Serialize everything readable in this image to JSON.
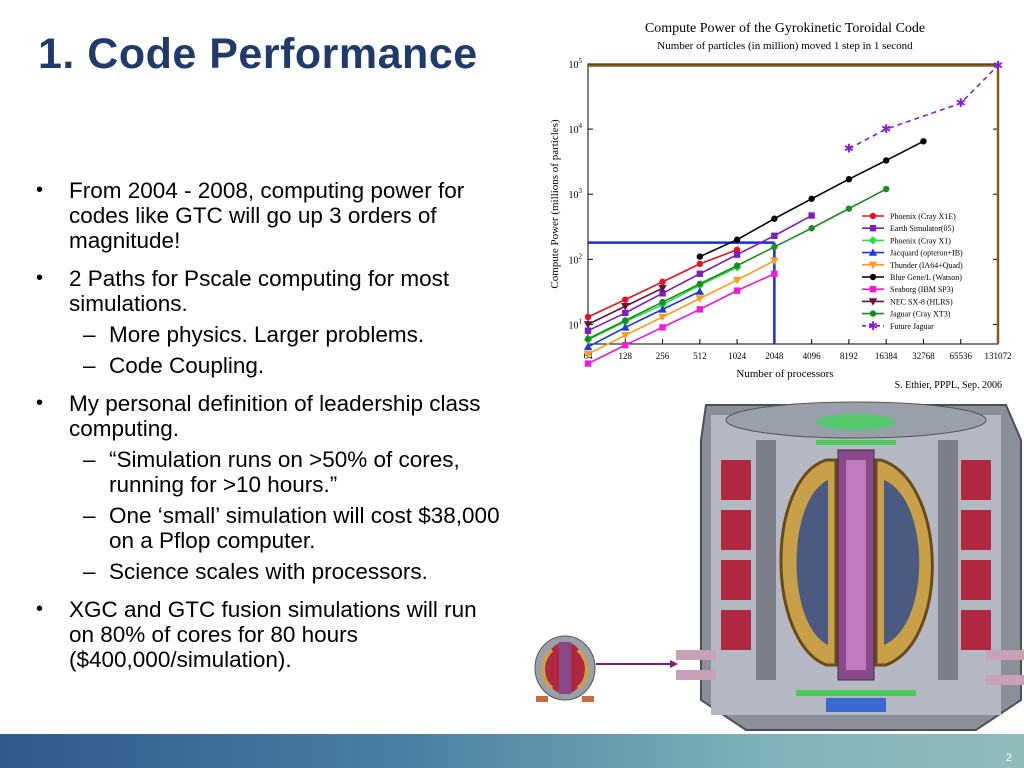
{
  "title": "1. Code Performance",
  "bullets": [
    {
      "text": "From 2004 - 2008, computing power for codes like GTC will go up 3 orders of magnitude!",
      "subs": []
    },
    {
      "text": "2 Paths for Pscale computing for most simulations.",
      "subs": [
        "More physics. Larger problems.",
        "Code Coupling."
      ]
    },
    {
      "text": "My personal definition of leadership class computing.",
      "subs": [
        "“Simulation runs on >50% of cores, running for >10 hours.”",
        "One ‘small’ simulation will cost $38,000 on a Pflop computer.",
        "Science scales with processors."
      ]
    },
    {
      "text": "XGC and GTC fusion simulations will run on 80% of cores for 80 hours ($400,000/simulation).",
      "subs": []
    }
  ],
  "page_number": "2",
  "chart_data": {
    "type": "line",
    "title": "Compute Power of the Gyrokinetic Toroidal Code",
    "subtitle": "Number of particles (in million) moved 1 step in 1 second",
    "xlabel": "Number of processors",
    "ylabel": "Compute Power (millions of particles)",
    "credit": "S. Ethier, PPPL, Sep. 2006",
    "x_scale": "log2",
    "y_scale": "log10",
    "xlim": [
      64,
      131072
    ],
    "ylim": [
      5,
      100000
    ],
    "x_ticks": [
      "64",
      "128",
      "256",
      "512",
      "1024",
      "2048",
      "4096",
      "8192",
      "16384",
      "32768",
      "65536",
      "131072"
    ],
    "y_ticks": [
      {
        "base": "10",
        "exp": "1",
        "value": 10
      },
      {
        "base": "10",
        "exp": "2",
        "value": 100
      },
      {
        "base": "10",
        "exp": "3",
        "value": 1000
      },
      {
        "base": "10",
        "exp": "4",
        "value": 10000
      },
      {
        "base": "10",
        "exp": "5",
        "value": 100000
      }
    ],
    "legend_position": "bottom-right",
    "series": [
      {
        "name": "Phoenix (Cray X1E)",
        "color": "#e8101a",
        "marker": "circle",
        "points": [
          [
            64,
            13
          ],
          [
            128,
            24
          ],
          [
            256,
            45
          ],
          [
            512,
            85
          ],
          [
            1024,
            140
          ]
        ]
      },
      {
        "name": "Earth Simulator(05)",
        "color": "#7b1fc2",
        "marker": "square",
        "points": [
          [
            64,
            8
          ],
          [
            128,
            15
          ],
          [
            256,
            30
          ],
          [
            512,
            60
          ],
          [
            1024,
            118
          ],
          [
            2048,
            230
          ],
          [
            4096,
            470
          ]
        ]
      },
      {
        "name": "Phoenix (Cray X1)",
        "color": "#22e03a",
        "marker": "diamond",
        "points": [
          [
            64,
            5.8
          ],
          [
            128,
            11
          ],
          [
            256,
            20
          ],
          [
            512,
            40
          ],
          [
            1024,
            75
          ]
        ]
      },
      {
        "name": "Jacquard (opteron+IB)",
        "color": "#1a3ae0",
        "marker": "triangle",
        "points": [
          [
            64,
            4.5
          ],
          [
            128,
            9
          ],
          [
            256,
            17
          ],
          [
            512,
            32
          ]
        ]
      },
      {
        "name": "Thunder (IA64+Quad)",
        "color": "#ff9a1a",
        "marker": "tri-down",
        "points": [
          [
            64,
            3.5
          ],
          [
            128,
            6.8
          ],
          [
            256,
            13
          ],
          [
            512,
            25
          ],
          [
            1024,
            48
          ],
          [
            2048,
            95
          ]
        ]
      },
      {
        "name": "Blue Gene/L (Watson)",
        "color": "#000000",
        "marker": "circle",
        "points": [
          [
            512,
            110
          ],
          [
            1024,
            200
          ],
          [
            2048,
            420
          ],
          [
            4096,
            850
          ],
          [
            8192,
            1700
          ],
          [
            16384,
            3300
          ],
          [
            32768,
            6500
          ]
        ]
      },
      {
        "name": "Seaborg (IBM SP3)",
        "color": "#f01ad8",
        "marker": "square",
        "points": [
          [
            64,
            2.5
          ],
          [
            128,
            4.8
          ],
          [
            256,
            9
          ],
          [
            512,
            17
          ],
          [
            1024,
            33
          ],
          [
            2048,
            60
          ]
        ]
      },
      {
        "name": "NEC SX-8 (HLRS)",
        "color": "#6a0e3a",
        "marker": "tri-down",
        "points": [
          [
            64,
            10
          ],
          [
            128,
            19
          ],
          [
            256,
            36
          ]
        ]
      },
      {
        "name": "Jaguar (Cray XT3)",
        "color": "#1a8a22",
        "marker": "circle",
        "points": [
          [
            64,
            6
          ],
          [
            128,
            11.5
          ],
          [
            256,
            22
          ],
          [
            512,
            42
          ],
          [
            1024,
            80
          ],
          [
            2048,
            155
          ],
          [
            4096,
            300
          ],
          [
            8192,
            600
          ],
          [
            16384,
            1200
          ]
        ]
      },
      {
        "name": "Future Jaguar",
        "color": "#8a1ad8",
        "marker": "star",
        "dashed": true,
        "points": [
          [
            8192,
            5000
          ],
          [
            16384,
            10000
          ],
          [
            65536,
            25000
          ],
          [
            131072,
            95000
          ]
        ]
      }
    ],
    "guide_lines": [
      {
        "color": "#1a2ae8",
        "x": 2048,
        "y": 180
      },
      {
        "color": "#8a5a1a",
        "x": 131072,
        "y": 95000
      }
    ]
  }
}
